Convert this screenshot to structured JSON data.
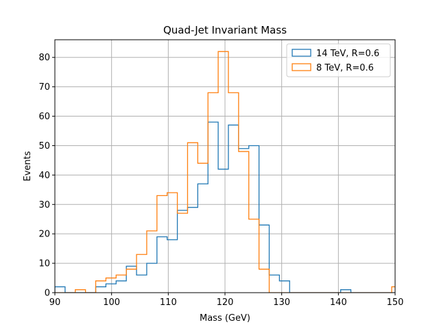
{
  "chart_data": {
    "type": "histogram-step",
    "title": "Quad-Jet Invariant Mass",
    "xlabel": "Mass (GeV)",
    "ylabel": "Events",
    "xlim": [
      90,
      150
    ],
    "ylim": [
      0,
      86
    ],
    "x_ticks": [
      "90",
      "100",
      "110",
      "120",
      "130",
      "140",
      "150"
    ],
    "y_ticks": [
      "0",
      "10",
      "20",
      "30",
      "40",
      "50",
      "60",
      "70",
      "80"
    ],
    "grid": true,
    "legend_position": "top-right",
    "bin_edges": [
      90.0,
      91.8,
      93.6,
      95.4,
      97.2,
      99.0,
      100.8,
      102.6,
      104.4,
      106.2,
      108.0,
      109.8,
      111.6,
      113.4,
      115.2,
      117.0,
      118.8,
      120.6,
      122.4,
      124.2,
      126.0,
      127.8,
      129.6,
      131.4,
      133.2,
      135.0,
      136.8,
      138.6,
      140.4,
      142.2,
      144.0,
      145.8,
      147.6,
      149.4,
      151.2
    ],
    "series": [
      {
        "name": "14 TeV, R=0.6",
        "color": "#1f77b4",
        "values": [
          2,
          0,
          0,
          0,
          2,
          3,
          4,
          9,
          6,
          10,
          19,
          18,
          28,
          29,
          37,
          58,
          42,
          57,
          49,
          50,
          23,
          6,
          4,
          0,
          0,
          0,
          0,
          0,
          1,
          0,
          0,
          0,
          0,
          0
        ]
      },
      {
        "name": "8 TeV, R=0.6",
        "color": "#ff7f0e",
        "values": [
          0,
          0,
          1,
          0,
          4,
          5,
          6,
          8,
          13,
          21,
          33,
          34,
          27,
          51,
          44,
          68,
          82,
          68,
          48,
          25,
          8,
          0,
          0,
          0,
          0,
          0,
          0,
          0,
          0,
          0,
          0,
          0,
          0,
          2
        ]
      }
    ]
  }
}
